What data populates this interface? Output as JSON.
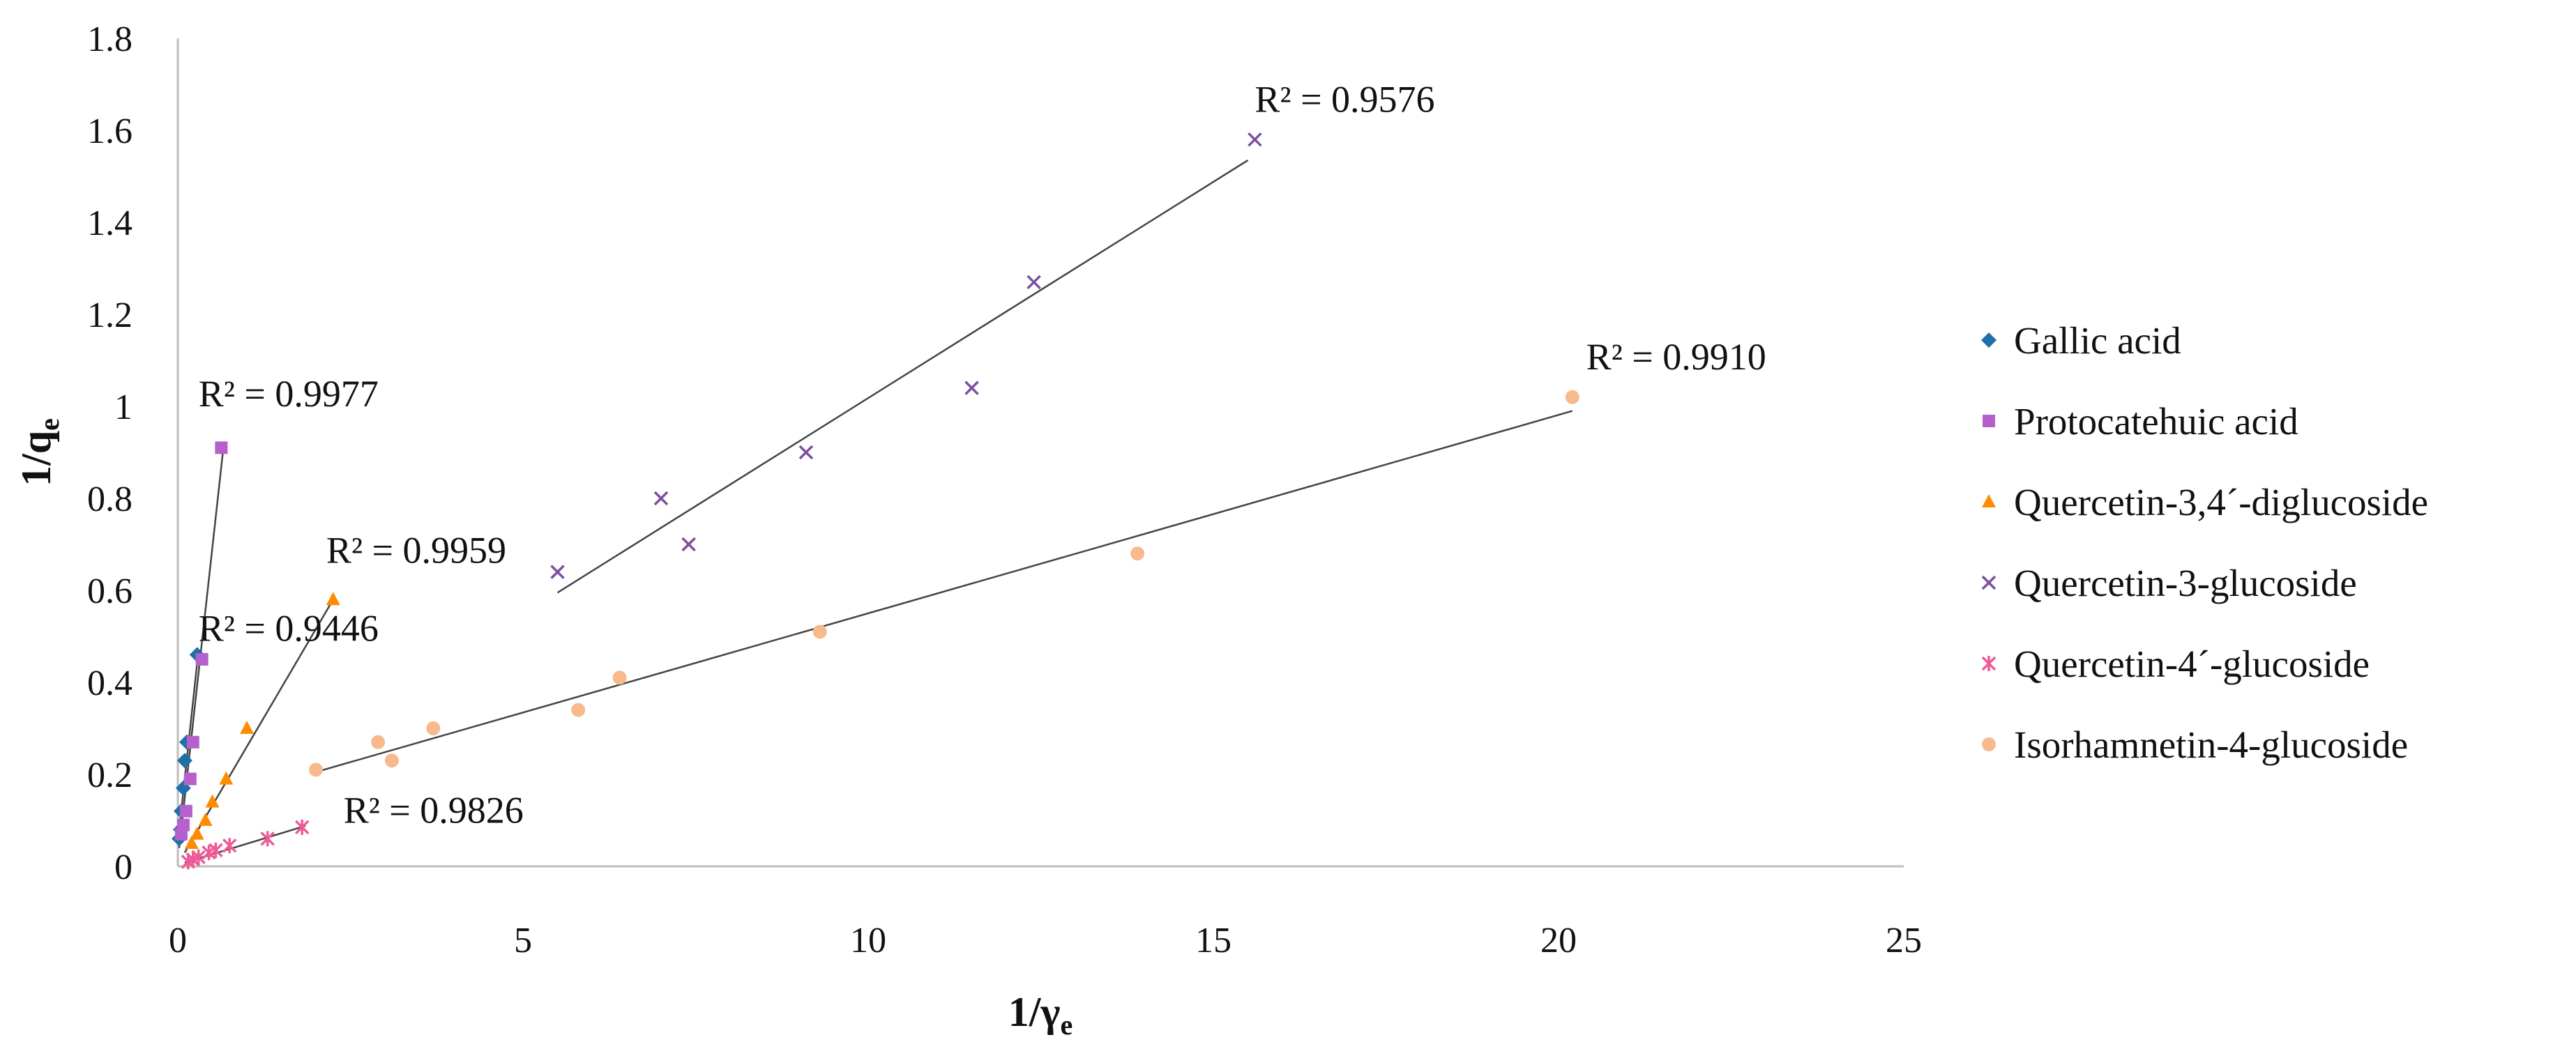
{
  "chart_data": {
    "type": "scatter",
    "xlabel": {
      "main": "1/γ",
      "sub": "e"
    },
    "ylabel": {
      "main": "1/q",
      "sub": "e"
    },
    "xlim": [
      0,
      25
    ],
    "ylim": [
      0,
      1.8
    ],
    "xticks": [
      0,
      5,
      10,
      15,
      20,
      25
    ],
    "xtick_labels": [
      "0",
      "5",
      "10",
      "15",
      "20",
      "25"
    ],
    "yticks": [
      0,
      0.2,
      0.4,
      0.6,
      0.8,
      1,
      1.2,
      1.4,
      1.6,
      1.8
    ],
    "ytick_labels": [
      "0",
      "0.2",
      "0.4",
      "0.6",
      "0.8",
      "1",
      "1.2",
      "1.4",
      "1.6",
      "1.8"
    ],
    "grid": false,
    "legend_position": "right",
    "trendline_color": "#444444",
    "series": [
      {
        "name": "Gallic acid",
        "marker": "diamond",
        "color": "#1f6fa8",
        "x": [
          0.02,
          0.04,
          0.05,
          0.08,
          0.1,
          0.13,
          0.28
        ],
        "y": [
          0.06,
          0.08,
          0.12,
          0.17,
          0.23,
          0.27,
          0.46
        ],
        "trend": {
          "x": [
            0.0,
            0.3
          ],
          "y": [
            0.05,
            0.47
          ]
        },
        "r2": "R² = 0.9446",
        "r2_at": [
          0.3,
          0.49
        ]
      },
      {
        "name": "Protocatehuic acid",
        "marker": "square",
        "color": "#b660cd",
        "x": [
          0.05,
          0.08,
          0.12,
          0.18,
          0.22,
          0.35,
          0.63
        ],
        "y": [
          0.07,
          0.09,
          0.12,
          0.19,
          0.27,
          0.45,
          0.91
        ],
        "trend": {
          "x": [
            0.02,
            0.66
          ],
          "y": [
            0.04,
            0.91
          ]
        },
        "r2": "R² = 0.9977",
        "r2_at": [
          0.3,
          1.0
        ]
      },
      {
        "name": "Quercetin-3,4´-diglucoside",
        "marker": "triangle",
        "color": "#ff8c00",
        "x": [
          0.2,
          0.28,
          0.4,
          0.5,
          0.7,
          1.0,
          2.25
        ],
        "y": [
          0.05,
          0.07,
          0.1,
          0.14,
          0.19,
          0.3,
          0.58
        ],
        "trend": {
          "x": [
            0.1,
            2.25
          ],
          "y": [
            0.03,
            0.58
          ]
        },
        "r2": "R² = 0.9959",
        "r2_at": [
          2.15,
          0.66
        ]
      },
      {
        "name": "Quercetin-3-glucoside",
        "marker": "x",
        "color": "#7b4fa0",
        "x": [
          5.5,
          7.0,
          7.4,
          9.1,
          11.5,
          12.4,
          15.6
        ],
        "y": [
          0.64,
          0.8,
          0.7,
          0.9,
          1.04,
          1.27,
          1.58
        ],
        "trend": {
          "x": [
            5.5,
            15.5
          ],
          "y": [
            0.595,
            1.535
          ]
        },
        "r2": "R² = 0.9576",
        "r2_at": [
          15.6,
          1.64
        ]
      },
      {
        "name": "Quercetin-4´-glucoside",
        "marker": "star",
        "color": "#ee5b96",
        "x": [
          0.15,
          0.22,
          0.3,
          0.45,
          0.55,
          0.75,
          1.3,
          1.8
        ],
        "y": [
          0.01,
          0.015,
          0.02,
          0.03,
          0.035,
          0.045,
          0.06,
          0.085
        ],
        "trend": {
          "x": [
            0.1,
            1.85
          ],
          "y": [
            0.008,
            0.088
          ]
        },
        "r2": "R² = 0.9826",
        "r2_at": [
          2.4,
          0.095
        ]
      },
      {
        "name": "Isorhamnetin-4-glucoside",
        "marker": "circle",
        "color": "#f8b98d",
        "x": [
          2.0,
          2.9,
          3.1,
          3.7,
          5.8,
          6.4,
          9.3,
          13.9,
          20.2
        ],
        "y": [
          0.21,
          0.27,
          0.23,
          0.3,
          0.34,
          0.41,
          0.51,
          0.68,
          1.02
        ],
        "trend": {
          "x": [
            2.0,
            20.2
          ],
          "y": [
            0.205,
            0.99
          ]
        },
        "r2": "R² = 0.9910",
        "r2_at": [
          20.4,
          1.08
        ]
      }
    ]
  }
}
